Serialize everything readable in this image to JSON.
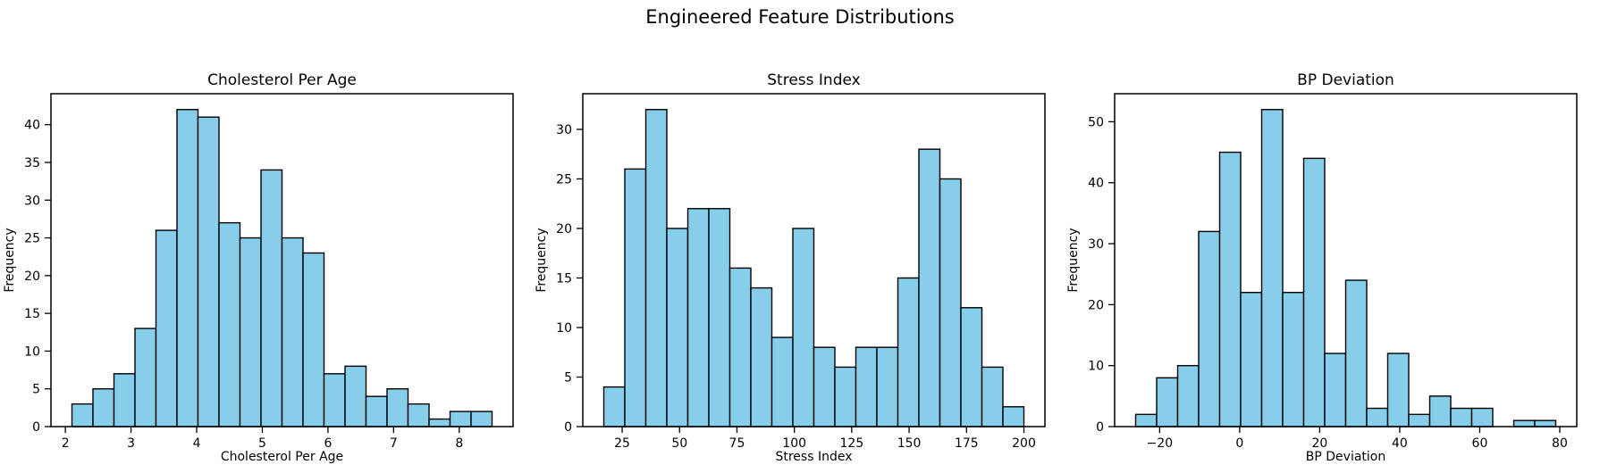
{
  "figure": {
    "title": "Engineered Feature Distributions"
  },
  "style": {
    "background": "#FFFFFF",
    "bar_fill": "#87CEEB",
    "bar_edge": "#000000",
    "text_color": "#000000",
    "axis_color": "#000000"
  },
  "chart_data": [
    {
      "type": "bar",
      "title": "Cholesterol Per Age",
      "xlabel": "Cholesterol Per Age",
      "ylabel": "Frequency",
      "bin_start": 2.1,
      "bin_width": 0.32,
      "values": [
        3,
        5,
        7,
        13,
        26,
        42,
        41,
        27,
        25,
        34,
        25,
        23,
        7,
        8,
        4,
        5,
        3,
        1,
        2,
        2
      ],
      "xticks": [
        2,
        3,
        4,
        5,
        6,
        7,
        8
      ],
      "xtick_labels": [
        "2",
        "3",
        "4",
        "5",
        "6",
        "7",
        "8"
      ],
      "yticks": [
        0,
        5,
        10,
        15,
        20,
        25,
        30,
        35,
        40
      ],
      "ytick_labels": [
        "0",
        "5",
        "10",
        "15",
        "20",
        "25",
        "30",
        "35",
        "40"
      ],
      "xlim": [
        1.78,
        8.82
      ],
      "ylim": [
        0,
        44.1
      ],
      "grid": false,
      "legend_position": "none"
    },
    {
      "type": "bar",
      "title": "Stress Index",
      "xlabel": "Stress Index",
      "ylabel": "Frequency",
      "bin_start": 17,
      "bin_width": 9.15,
      "values": [
        4,
        26,
        32,
        20,
        22,
        22,
        16,
        14,
        9,
        20,
        8,
        6,
        8,
        8,
        15,
        28,
        25,
        12,
        6,
        2
      ],
      "xticks": [
        25,
        50,
        75,
        100,
        125,
        150,
        175,
        200
      ],
      "xtick_labels": [
        "25",
        "50",
        "75",
        "100",
        "125",
        "150",
        "175",
        "200"
      ],
      "yticks": [
        0,
        5,
        10,
        15,
        20,
        25,
        30
      ],
      "ytick_labels": [
        "0",
        "5",
        "10",
        "15",
        "20",
        "25",
        "30"
      ],
      "xlim": [
        7.85,
        209.15
      ],
      "ylim": [
        0,
        33.6
      ],
      "grid": false,
      "legend_position": "none"
    },
    {
      "type": "bar",
      "title": "BP Deviation",
      "xlabel": "BP Deviation",
      "ylabel": "Frequency",
      "bin_start": -26,
      "bin_width": 5.25,
      "values": [
        2,
        8,
        10,
        32,
        45,
        22,
        52,
        22,
        44,
        12,
        24,
        3,
        12,
        2,
        5,
        3,
        3,
        0,
        1,
        1
      ],
      "xticks": [
        -20,
        0,
        20,
        40,
        60,
        80
      ],
      "xtick_labels": [
        "−20",
        "0",
        "20",
        "40",
        "60",
        "80"
      ],
      "yticks": [
        0,
        10,
        20,
        30,
        40,
        50
      ],
      "ytick_labels": [
        "0",
        "10",
        "20",
        "30",
        "40",
        "50"
      ],
      "xlim": [
        -31.25,
        84.25
      ],
      "ylim": [
        0,
        54.6
      ],
      "grid": false,
      "legend_position": "none"
    }
  ]
}
